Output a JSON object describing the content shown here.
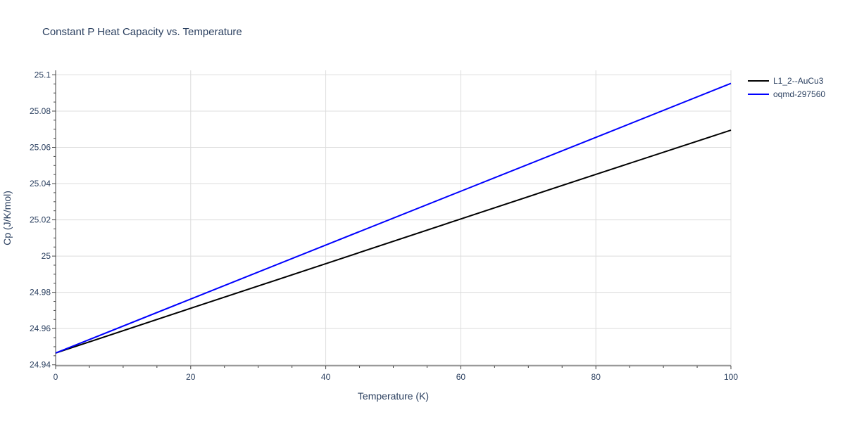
{
  "chart_data": {
    "type": "line",
    "title": "Constant P Heat Capacity vs. Temperature",
    "xlabel": "Temperature (K)",
    "ylabel": "Cp (J/K/mol)",
    "xlim": [
      0,
      100
    ],
    "ylim": [
      24.9395,
      25.1025
    ],
    "x_ticks": [
      0,
      20,
      40,
      60,
      80,
      100
    ],
    "x_tick_labels": [
      "0",
      "20",
      "40",
      "60",
      "80",
      "100"
    ],
    "y_ticks": [
      24.94,
      24.96,
      24.98,
      25.0,
      25.02,
      25.04,
      25.06,
      25.08,
      25.1
    ],
    "y_tick_labels": [
      "24.94",
      "24.96",
      "24.98",
      "25",
      "25.02",
      "25.04",
      "25.06",
      "25.08",
      "25.1"
    ],
    "grid": true,
    "legend_position": "top-right",
    "series": [
      {
        "name": "L1_2--AuCu3",
        "color": "#000000",
        "x": [
          0,
          20,
          40,
          60,
          80,
          100
        ],
        "values": [
          24.9465,
          24.9712,
          24.9958,
          25.0205,
          25.0451,
          25.0695
        ]
      },
      {
        "name": "oqmd-297560",
        "color": "#0000ff",
        "x": [
          0,
          20,
          40,
          60,
          80,
          100
        ],
        "values": [
          24.9465,
          24.9763,
          25.0061,
          25.0358,
          25.0655,
          25.0953
        ]
      }
    ]
  }
}
